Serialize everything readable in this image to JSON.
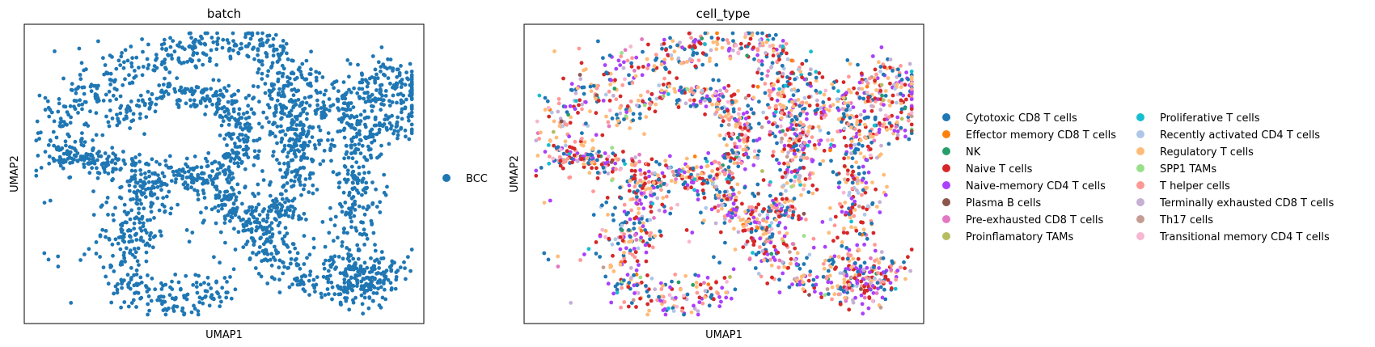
{
  "chart_data": [
    {
      "type": "scatter",
      "title": "batch",
      "xlabel": "UMAP1",
      "ylabel": "UMAP2",
      "xticks": [],
      "yticks": [],
      "grid": false,
      "legend_placement": "right-outside",
      "legend": [
        {
          "name": "BCC",
          "color": "#1f77b4"
        }
      ],
      "series": [
        {
          "name": "BCC",
          "color": "#1f77b4",
          "points": "dense UMAP embedding forming a spiral/loop structure"
        }
      ]
    },
    {
      "type": "scatter",
      "title": "cell_type",
      "xlabel": "UMAP1",
      "ylabel": "UMAP2",
      "xticks": [],
      "yticks": [],
      "grid": false,
      "legend_placement": "right-outside",
      "legend": [
        {
          "name": "Cytotoxic CD8 T cells",
          "color": "#1f77b4"
        },
        {
          "name": "Effector memory CD8 T cells",
          "color": "#ff7f0e"
        },
        {
          "name": "NK",
          "color": "#279e68"
        },
        {
          "name": "Naive T cells",
          "color": "#d62728"
        },
        {
          "name": "Naive-memory CD4 T cells",
          "color": "#aa40fc"
        },
        {
          "name": "Plasma B cells",
          "color": "#8c564b"
        },
        {
          "name": "Pre-exhausted CD8 T cells",
          "color": "#e377c2"
        },
        {
          "name": "Proinflamatory TAMs",
          "color": "#b5bd61"
        },
        {
          "name": "Proliferative T cells",
          "color": "#17becf"
        },
        {
          "name": "Recently activated CD4 T cells",
          "color": "#aec7e8"
        },
        {
          "name": "Regulatory T cells",
          "color": "#ffbb78"
        },
        {
          "name": "SPP1 TAMs",
          "color": "#98df8a"
        },
        {
          "name": "T helper cells",
          "color": "#ff9896"
        },
        {
          "name": "Terminally exhausted CD8 T cells",
          "color": "#c5b0d5"
        },
        {
          "name": "Th17 cells",
          "color": "#c49c94"
        },
        {
          "name": "Transitional memory CD4 T cells",
          "color": "#f7b6d2"
        }
      ],
      "series_weights": [
        0.2,
        0.005,
        0.01,
        0.18,
        0.14,
        0.005,
        0.03,
        0.005,
        0.02,
        0.04,
        0.17,
        0.005,
        0.11,
        0.05,
        0.01,
        0.03
      ]
    }
  ]
}
